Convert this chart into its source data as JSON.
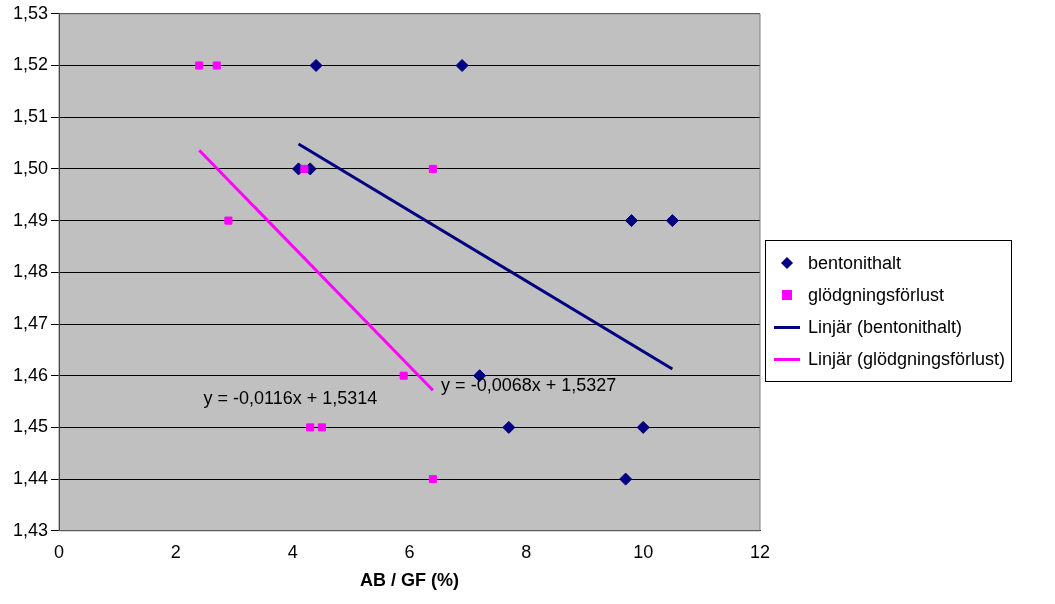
{
  "chart_data": {
    "type": "scatter",
    "xlabel": "AB / GF (%)",
    "xlim": [
      0,
      12
    ],
    "xticks": [
      0,
      2,
      4,
      6,
      8,
      10,
      12
    ],
    "ylim": [
      1.43,
      1.53
    ],
    "yticks": [
      {
        "value": 1.43,
        "label": "1,43"
      },
      {
        "value": 1.44,
        "label": "1,44"
      },
      {
        "value": 1.45,
        "label": "1,45"
      },
      {
        "value": 1.46,
        "label": "1,46"
      },
      {
        "value": 1.47,
        "label": "1,47"
      },
      {
        "value": 1.48,
        "label": "1,48"
      },
      {
        "value": 1.49,
        "label": "1,49"
      },
      {
        "value": 1.5,
        "label": "1,50"
      },
      {
        "value": 1.51,
        "label": "1,51"
      },
      {
        "value": 1.52,
        "label": "1,52"
      },
      {
        "value": 1.53,
        "label": "1,53"
      }
    ],
    "grid": "y",
    "legend": "right",
    "series": [
      {
        "name": "bentonithalt",
        "marker": "diamond",
        "color": "#000080",
        "x": [
          4.4,
          6.9,
          4.1,
          4.3,
          9.8,
          10.5,
          7.2,
          7.7,
          10.0,
          9.7
        ],
        "values": [
          1.52,
          1.52,
          1.5,
          1.5,
          1.49,
          1.49,
          1.46,
          1.45,
          1.45,
          1.44
        ]
      },
      {
        "name": "glödgningsförlust",
        "marker": "square",
        "color": "#ff00ff",
        "x": [
          2.4,
          2.7,
          4.2,
          6.4,
          2.9,
          5.9,
          4.3,
          4.5,
          6.4
        ],
        "values": [
          1.52,
          1.52,
          1.5,
          1.5,
          1.49,
          1.46,
          1.45,
          1.45,
          1.44
        ]
      },
      {
        "name": "Linjär (bentonithalt)",
        "type": "line",
        "marker": "none",
        "color": "#000080",
        "x": [
          4.1,
          10.5
        ],
        "values": [
          1.5048,
          1.4613
        ]
      },
      {
        "name": "Linjär (glödgningsförlust)",
        "type": "line",
        "marker": "none",
        "color": "#ff00ff",
        "x": [
          2.4,
          6.4
        ],
        "values": [
          1.5036,
          1.4572
        ]
      }
    ],
    "annotations": [
      "y = -0,0068x + 1,5327",
      "y = -0,0116x + 1,5314"
    ]
  }
}
